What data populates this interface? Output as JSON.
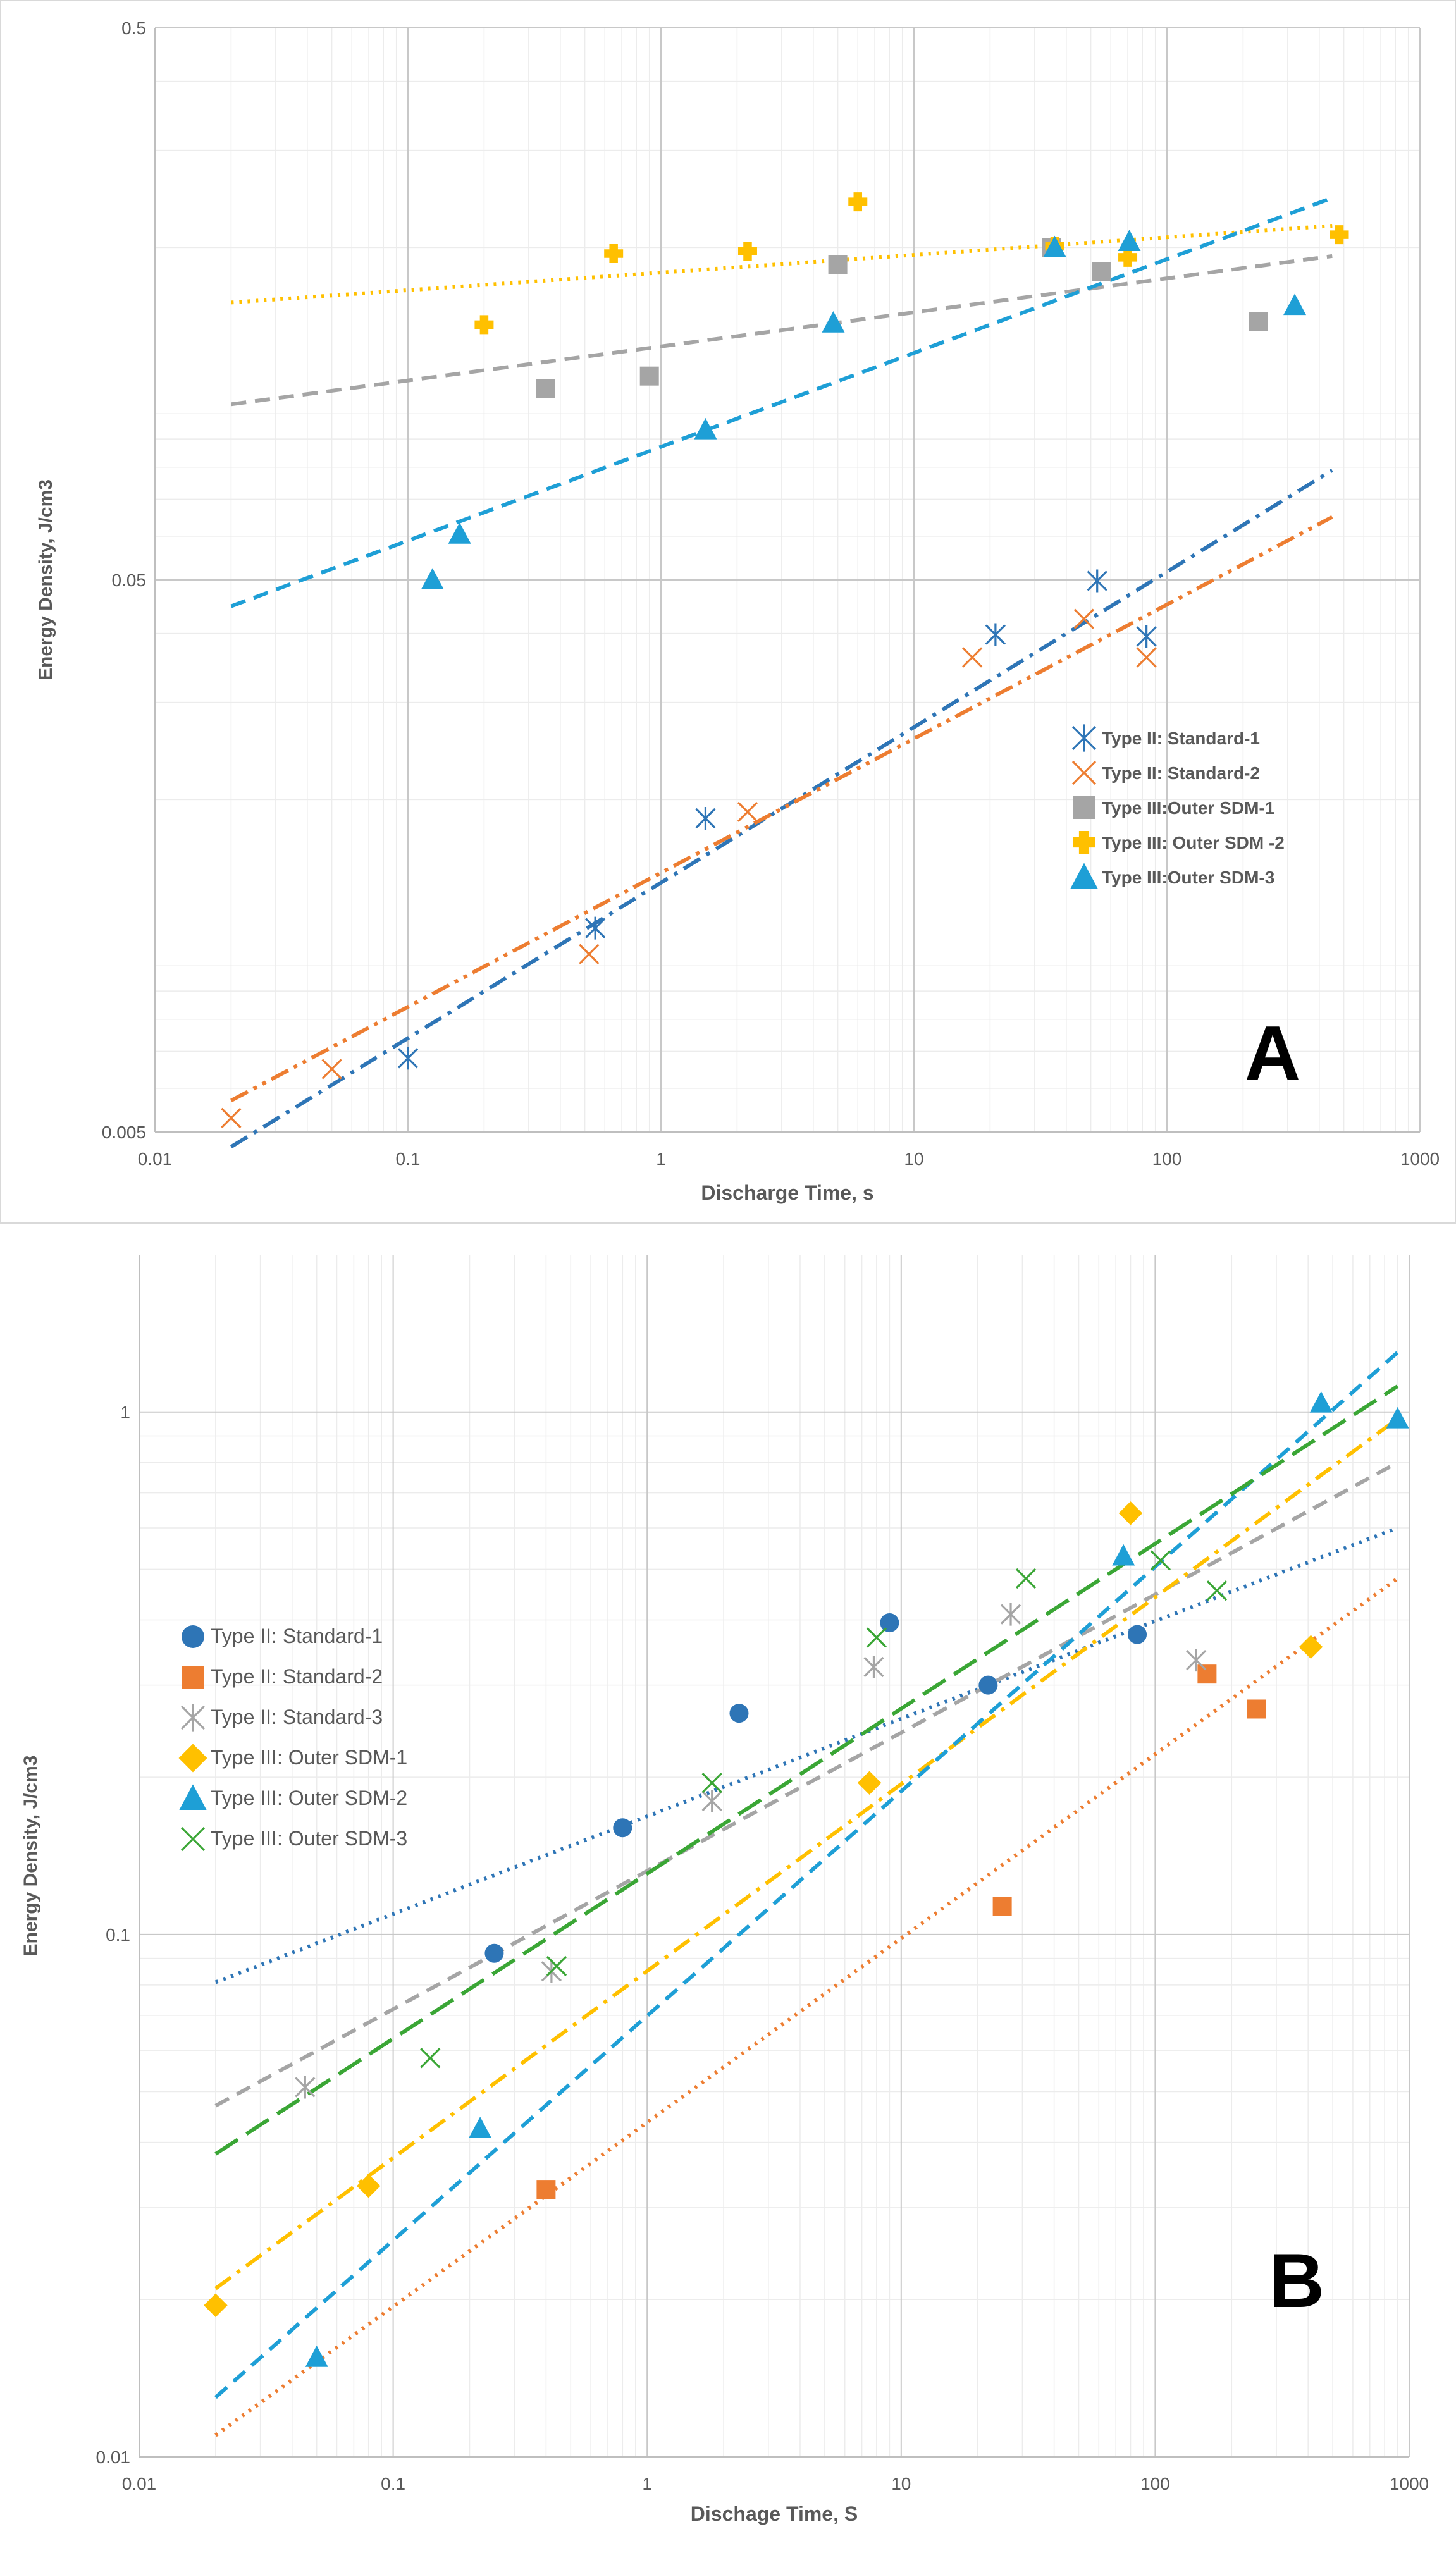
{
  "chart_data": [
    {
      "type": "scatter",
      "panel_label": "A",
      "xlabel": "Discharge Time, s",
      "ylabel": "Energy Density, J/cm3",
      "xscale": "log",
      "yscale": "log",
      "xlim": [
        0.01,
        1000
      ],
      "ylim": [
        0.005,
        0.5
      ],
      "xticks": [
        "0.01",
        "0.1",
        "1",
        "10",
        "100",
        "1000"
      ],
      "yticks": [
        "0.005",
        "0.05",
        "0.5"
      ],
      "legend_position": "right-middle",
      "grid": true,
      "series": [
        {
          "name": "Type II: Standard-1",
          "color": "#2e75b6",
          "marker": "asterisk",
          "points": [
            [
              0.1,
              0.0068
            ],
            [
              0.55,
              0.0117
            ],
            [
              1.5,
              0.0185
            ],
            [
              21,
              0.0398
            ],
            [
              53,
              0.0498
            ],
            [
              83,
              0.0395
            ]
          ],
          "trend": {
            "style": "dash-dot",
            "x_range": [
              0.02,
              450
            ],
            "y_range": [
              0.0047,
              0.079
            ]
          }
        },
        {
          "name": "Type II: Standard-2",
          "color": "#ed7d31",
          "marker": "x",
          "points": [
            [
              0.02,
              0.0053
            ],
            [
              0.05,
              0.0065
            ],
            [
              0.52,
              0.0105
            ],
            [
              2.2,
              0.019
            ],
            [
              17,
              0.0362
            ],
            [
              47,
              0.0425
            ],
            [
              83,
              0.0362
            ]
          ],
          "trend": {
            "style": "dash-dot-dot",
            "x_range": [
              0.02,
              450
            ],
            "y_range": [
              0.0057,
              0.065
            ]
          }
        },
        {
          "name": "Type III:Outer SDM-1",
          "color": "#a5a5a5",
          "marker": "square",
          "points": [
            [
              0.35,
              0.111
            ],
            [
              0.9,
              0.117
            ],
            [
              5,
              0.186
            ],
            [
              35,
              0.2
            ],
            [
              55,
              0.181
            ],
            [
              230,
              0.147
            ]
          ],
          "trend": {
            "style": "dash",
            "x_range": [
              0.02,
              450
            ],
            "y_range": [
              0.104,
              0.193
            ]
          }
        },
        {
          "name": "Type III: Outer SDM -2",
          "color": "#ffc000",
          "marker": "plus",
          "points": [
            [
              0.2,
              0.145
            ],
            [
              0.65,
              0.195
            ],
            [
              2.2,
              0.197
            ],
            [
              6,
              0.242
            ],
            [
              36,
              0.201
            ],
            [
              70,
              0.192
            ],
            [
              480,
              0.211
            ]
          ],
          "trend": {
            "style": "dot",
            "x_range": [
              0.02,
              450
            ],
            "y_range": [
              0.159,
              0.219
            ]
          }
        },
        {
          "name": "Type III:Outer SDM-3",
          "color": "#1e9fd6",
          "marker": "triangle",
          "points": [
            [
              0.125,
              0.05
            ],
            [
              0.16,
              0.0605
            ],
            [
              1.5,
              0.0935
            ],
            [
              4.8,
              0.146
            ],
            [
              36,
              0.2
            ],
            [
              71,
              0.205
            ],
            [
              320,
              0.157
            ]
          ],
          "trend": {
            "style": "dash",
            "x_range": [
              0.02,
              450
            ],
            "y_range": [
              0.0448,
              0.246
            ]
          }
        }
      ]
    },
    {
      "type": "scatter",
      "panel_label": "B",
      "xlabel": "Dischage Time, S",
      "ylabel": "Energy Density, J/cm3",
      "xscale": "log",
      "yscale": "log",
      "xlim": [
        0.01,
        1000
      ],
      "ylim": [
        0.01,
        2
      ],
      "xticks": [
        "0.01",
        "0.1",
        "1",
        "10",
        "100",
        "1000"
      ],
      "yticks": [
        "0.01",
        "0.1",
        "1"
      ],
      "legend_position": "left-middle",
      "grid": true,
      "series": [
        {
          "name": "Type II: Standard-1",
          "color": "#2e75b6",
          "marker": "circle",
          "points": [
            [
              0.25,
              0.092
            ],
            [
              0.8,
              0.16
            ],
            [
              2.3,
              0.265
            ],
            [
              9,
              0.395
            ],
            [
              22,
              0.3
            ],
            [
              85,
              0.375
            ]
          ],
          "trend": {
            "style": "dot",
            "x_range": [
              0.02,
              900
            ],
            "y_range": [
              0.081,
              0.6
            ]
          }
        },
        {
          "name": "Type II: Standard-2",
          "color": "#ed7d31",
          "marker": "square",
          "points": [
            [
              0.4,
              0.0325
            ],
            [
              25,
              0.113
            ],
            [
              160,
              0.315
            ],
            [
              250,
              0.27
            ]
          ],
          "trend": {
            "style": "dot",
            "x_range": [
              0.02,
              900
            ],
            "y_range": [
              0.011,
              0.48
            ]
          }
        },
        {
          "name": "Type II: Standard-3",
          "color": "#a5a5a5",
          "marker": "asterisk",
          "points": [
            [
              0.045,
              0.051
            ],
            [
              0.42,
              0.085
            ],
            [
              1.8,
              0.18
            ],
            [
              7.8,
              0.325
            ],
            [
              27,
              0.41
            ],
            [
              145,
              0.335
            ]
          ],
          "trend": {
            "style": "dash",
            "x_range": [
              0.02,
              900
            ],
            "y_range": [
              0.047,
              0.8
            ]
          }
        },
        {
          "name": "Type III: Outer SDM-1",
          "color": "#ffc000",
          "marker": "diamond",
          "points": [
            [
              0.02,
              0.0195
            ],
            [
              0.08,
              0.033
            ],
            [
              7.5,
              0.195
            ],
            [
              80,
              0.64
            ],
            [
              410,
              0.355
            ]
          ],
          "trend": {
            "style": "dash-dot",
            "x_range": [
              0.02,
              900
            ],
            "y_range": [
              0.021,
              0.97
            ]
          }
        },
        {
          "name": "Type III: Outer SDM-2",
          "color": "#1e9fd6",
          "marker": "triangle",
          "points": [
            [
              0.05,
              0.0155
            ],
            [
              0.22,
              0.0425
            ],
            [
              75,
              0.53
            ],
            [
              450,
              1.04
            ],
            [
              900,
              0.97
            ]
          ],
          "trend": {
            "style": "dash",
            "x_range": [
              0.02,
              900
            ],
            "y_range": [
              0.013,
              1.3
            ]
          }
        },
        {
          "name": "Type III: Outer SDM-3",
          "color": "#3aa635",
          "marker": "x",
          "points": [
            [
              0.14,
              0.058
            ],
            [
              0.44,
              0.087
            ],
            [
              1.8,
              0.195
            ],
            [
              8,
              0.37
            ],
            [
              31,
              0.48
            ],
            [
              105,
              0.52
            ],
            [
              175,
              0.455
            ]
          ],
          "trend": {
            "style": "long-dash",
            "x_range": [
              0.02,
              900
            ],
            "y_range": [
              0.038,
              1.12
            ]
          }
        }
      ]
    }
  ]
}
